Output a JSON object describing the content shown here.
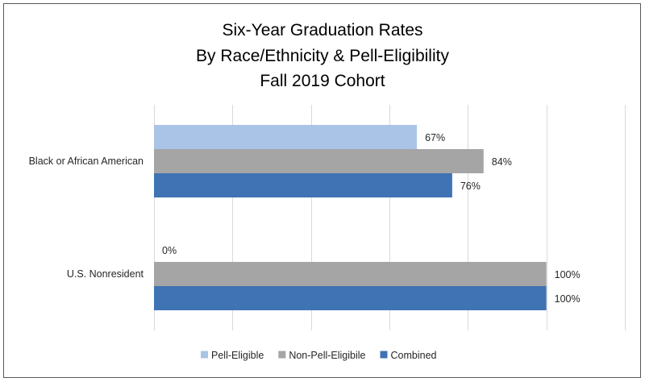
{
  "chart_data": {
    "type": "bar",
    "orientation": "horizontal",
    "title": [
      "Six-Year Graduation Rates",
      "By Race/Ethnicity & Pell-Eligibility",
      "Fall 2019 Cohort"
    ],
    "categories": [
      "Black or African American",
      "U.S. Nonresident"
    ],
    "series": [
      {
        "name": "Pell-Eligible",
        "values": [
          67,
          0
        ],
        "labels": [
          "67%",
          "0%"
        ],
        "color": "#a9c4e6"
      },
      {
        "name": "Non-Pell-Eligibile",
        "values": [
          84,
          100
        ],
        "labels": [
          "84%",
          "100%"
        ],
        "color": "#a5a5a5"
      },
      {
        "name": "Combined",
        "values": [
          76,
          100
        ],
        "labels": [
          "76%",
          "100%"
        ],
        "color": "#3f73b4"
      }
    ],
    "xlim": [
      0,
      120
    ],
    "x_tick_step": 20,
    "grid": true,
    "x_tick_labels_shown": false,
    "legend_position": "bottom"
  }
}
